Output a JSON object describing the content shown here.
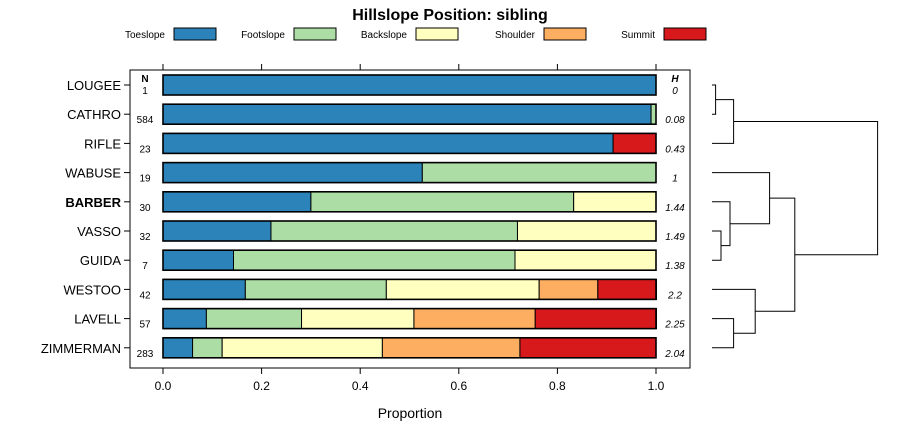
{
  "chart_data": {
    "type": "bar",
    "subtype": "stacked-horizontal-proportion",
    "title": "Hillslope Position: sibling",
    "xlabel": "Proportion",
    "ylabel": "",
    "xlim": [
      0,
      1
    ],
    "xticks": [
      "0.0",
      "0.2",
      "0.4",
      "0.6",
      "0.8",
      "1.0"
    ],
    "legend_position": "top",
    "n_header": "N",
    "h_header": "H",
    "series": [
      {
        "name": "Toeslope",
        "color": "#2b83ba"
      },
      {
        "name": "Footslope",
        "color": "#abdda4"
      },
      {
        "name": "Backslope",
        "color": "#ffffbf"
      },
      {
        "name": "Shoulder",
        "color": "#fdae61"
      },
      {
        "name": "Summit",
        "color": "#d7191c"
      }
    ],
    "rows": [
      {
        "label": "LOUGEE",
        "bold": false,
        "n": "1",
        "h": "0",
        "values": [
          1.0,
          0.0,
          0.0,
          0.0,
          0.0
        ]
      },
      {
        "label": "CATHRO",
        "bold": false,
        "n": "584",
        "h": "0.08",
        "values": [
          0.99,
          0.01,
          0.0,
          0.0,
          0.0
        ]
      },
      {
        "label": "RIFLE",
        "bold": false,
        "n": "23",
        "h": "0.43",
        "values": [
          0.913,
          0.0,
          0.0,
          0.0,
          0.087
        ]
      },
      {
        "label": "WABUSE",
        "bold": false,
        "n": "19",
        "h": "1",
        "values": [
          0.526,
          0.474,
          0.0,
          0.0,
          0.0
        ]
      },
      {
        "label": "BARBER",
        "bold": true,
        "n": "30",
        "h": "1.44",
        "values": [
          0.3,
          0.533,
          0.167,
          0.0,
          0.0
        ]
      },
      {
        "label": "VASSO",
        "bold": false,
        "n": "32",
        "h": "1.49",
        "values": [
          0.219,
          0.5,
          0.281,
          0.0,
          0.0
        ]
      },
      {
        "label": "GUIDA",
        "bold": false,
        "n": "7",
        "h": "1.38",
        "values": [
          0.143,
          0.571,
          0.286,
          0.0,
          0.0
        ]
      },
      {
        "label": "WESTOO",
        "bold": false,
        "n": "42",
        "h": "2.2",
        "values": [
          0.167,
          0.286,
          0.31,
          0.119,
          0.119
        ]
      },
      {
        "label": "LAVELL",
        "bold": false,
        "n": "57",
        "h": "2.25",
        "values": [
          0.088,
          0.193,
          0.228,
          0.246,
          0.246
        ]
      },
      {
        "label": "ZIMMERMAN",
        "bold": false,
        "n": "283",
        "h": "2.04",
        "values": [
          0.06,
          0.06,
          0.325,
          0.279,
          0.276
        ]
      }
    ],
    "dendrogram": {
      "description": "hierarchical clustering of rows",
      "merges": [
        [
          "LOUGEE",
          "CATHRO",
          0.02
        ],
        [
          "m1",
          "RIFLE",
          0.12
        ],
        [
          "VASSO",
          "GUIDA",
          0.05
        ],
        [
          "BARBER",
          "m3",
          0.1
        ],
        [
          "WABUSE",
          "m4",
          0.32
        ],
        [
          "LAVELL",
          "ZIMMERMAN",
          0.12
        ],
        [
          "WESTOO",
          "m6",
          0.24
        ],
        [
          "m5",
          "m7",
          0.46
        ],
        [
          "m2",
          "m8",
          0.92
        ]
      ]
    }
  }
}
